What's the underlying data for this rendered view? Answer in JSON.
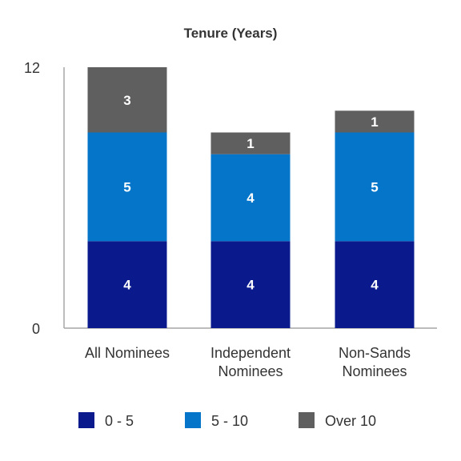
{
  "chart_data": {
    "type": "bar",
    "stacked": true,
    "title": "Tenure (Years)",
    "categories": [
      [
        "All Nominees"
      ],
      [
        "Independent",
        "Nominees"
      ],
      [
        "Non-Sands",
        "Nominees"
      ]
    ],
    "series": [
      {
        "name": "0 - 5",
        "values": [
          4,
          4,
          4
        ],
        "color": "#0a1a8c"
      },
      {
        "name": "5 - 10",
        "values": [
          5,
          4,
          5
        ],
        "color": "#0575c9"
      },
      {
        "name": "Over 10",
        "values": [
          3,
          1,
          1
        ],
        "color": "#5f5f5f"
      }
    ],
    "ylim": [
      0,
      12
    ],
    "yticks": [
      "0",
      "12"
    ],
    "xlabel": "",
    "ylabel": "",
    "grid": false,
    "legend_position": "bottom"
  }
}
